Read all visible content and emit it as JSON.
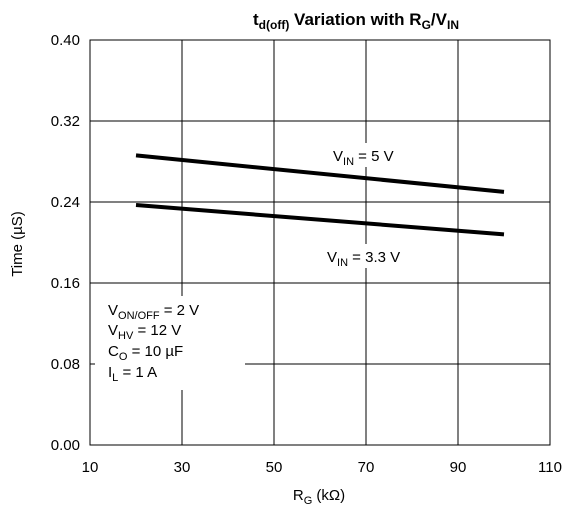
{
  "chart_data": {
    "type": "line",
    "title": {
      "main": "t",
      "main_sub": "d(off)",
      "middle": " Variation with R",
      "middle_sub": "G",
      "tail": "/V",
      "tail_sub": "IN"
    },
    "xlabel": {
      "main": "R",
      "sub": "G",
      "unit": " (kΩ)"
    },
    "ylabel": "Time  (µS)",
    "xlim": [
      10,
      110
    ],
    "ylim": [
      0.0,
      0.4
    ],
    "x_ticks": [
      "10",
      "30",
      "50",
      "70",
      "90",
      "110"
    ],
    "y_ticks": [
      "0.00",
      "0.08",
      "0.16",
      "0.24",
      "0.32",
      "0.40"
    ],
    "grid": true,
    "series": [
      {
        "name": "VIN = 5 V",
        "x": [
          20,
          100
        ],
        "y": [
          0.286,
          0.25
        ]
      },
      {
        "name": "VIN = 3.3 V",
        "x": [
          20,
          100
        ],
        "y": [
          0.237,
          0.208
        ]
      }
    ],
    "annotations": [
      {
        "main": "V",
        "sub": "IN",
        "tail": " = 5 V"
      },
      {
        "main": "V",
        "sub": "IN",
        "tail": " = 3.3 V"
      }
    ],
    "conditions": [
      {
        "main": "V",
        "sub": "ON/OFF",
        "tail": " = 2 V"
      },
      {
        "main": "V",
        "sub": "HV",
        "tail": " = 12 V"
      },
      {
        "main": "C",
        "sub": "O",
        "tail": " = 10 µF"
      },
      {
        "main": "I",
        "sub": "L",
        "tail": " = 1 A"
      }
    ]
  }
}
